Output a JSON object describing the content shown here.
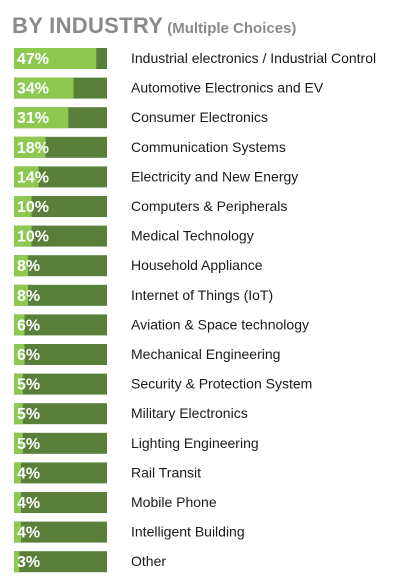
{
  "chart_data": {
    "type": "bar",
    "orientation": "horizontal",
    "title": "BY INDUSTRY",
    "subtitle": "(Multiple Choices)",
    "value_suffix": "%",
    "xlim": [
      0,
      100
    ],
    "colors": {
      "filled": "#8ec850",
      "track": "#5a7f3b",
      "value_text": "#ffffff",
      "label_text": "#1a1a1a",
      "title": "#8a8a8a"
    },
    "categories": [
      "Industrial electronics / Industrial Control",
      "Automotive Electronics and EV",
      "Consumer Electronics",
      "Communication Systems",
      "Electricity and New Energy",
      "Computers & Peripherals",
      "Medical Technology",
      "Household Appliance",
      "Internet of Things (IoT)",
      "Aviation & Space technology",
      "Mechanical Engineering",
      "Security & Protection System",
      "Military Electronics",
      "Lighting Engineering",
      "Rail Transit",
      "Mobile Phone",
      "Intelligent Building",
      "Other"
    ],
    "values": [
      47,
      34,
      31,
      18,
      14,
      10,
      10,
      8,
      8,
      6,
      6,
      5,
      5,
      5,
      4,
      4,
      4,
      3
    ]
  }
}
